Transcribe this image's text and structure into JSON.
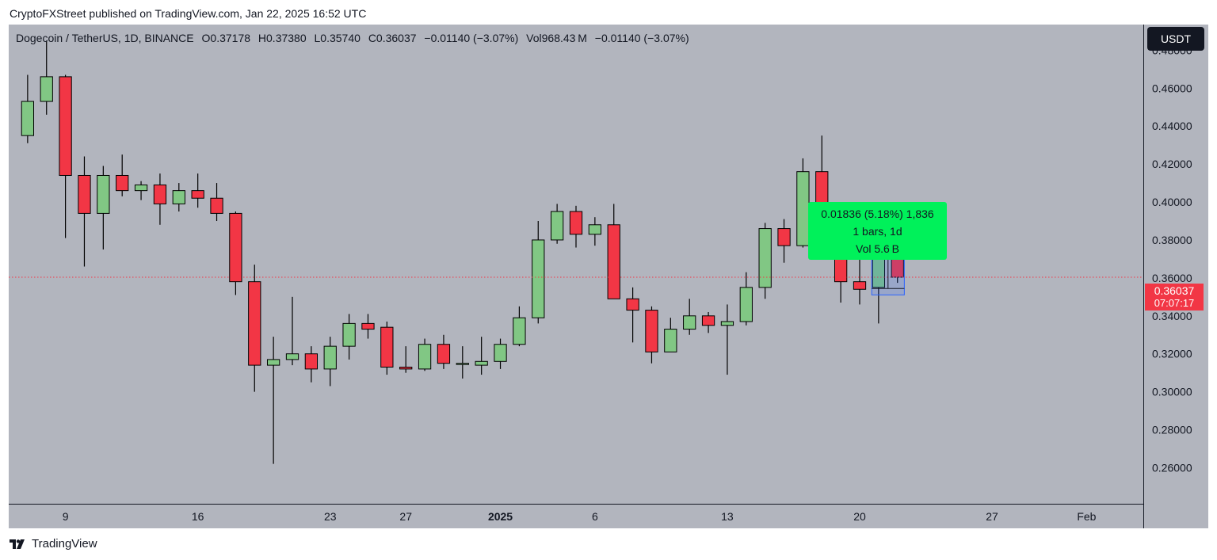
{
  "publisher": "CryptoFXStreet published on TradingView.com, Jan 22, 2025 16:52 UTC",
  "legend": {
    "symbol": "Dogecoin / TetherUS, 1D, BINANCE",
    "open": "O0.37178",
    "high": "H0.37380",
    "low": "L0.35740",
    "close": "C0.36037",
    "change": "−0.01140 (−3.07%)",
    "volume": "Vol968.43 M",
    "vol_change": "−0.01140 (−3.07%)"
  },
  "currency_button": "USDT",
  "price_tag": {
    "price": "0.36037",
    "countdown": "07:07:17"
  },
  "measure": {
    "line1": "0.01836 (5.18%) 1,836",
    "line2": "1 bars, 1d",
    "line3": "Vol 5.6 B"
  },
  "footer": "TradingView",
  "colors": {
    "background": "#b2b5be",
    "up": "#81c784",
    "down": "#f23645",
    "wick": "#000000",
    "price_line": "#f23645",
    "measure_box": "#00f15a"
  },
  "chart_data": {
    "type": "candlestick",
    "symbol": "Dogecoin / TetherUS",
    "interval": "1D",
    "exchange": "BINANCE",
    "ylim": [
      0.241,
      0.4935
    ],
    "yticks": [
      "0.48000",
      "0.46000",
      "0.44000",
      "0.42000",
      "0.40000",
      "0.38000",
      "0.36000",
      "0.34000",
      "0.32000",
      "0.30000",
      "0.28000",
      "0.26000"
    ],
    "xlim": [
      "2024-12-06",
      "2025-02-04"
    ],
    "xticks": [
      {
        "date": "2024-12-09",
        "label": "9"
      },
      {
        "date": "2024-12-16",
        "label": "16"
      },
      {
        "date": "2024-12-23",
        "label": "23"
      },
      {
        "date": "2024-12-27",
        "label": "27"
      },
      {
        "date": "2025-01-01",
        "label": "2025",
        "bold": true
      },
      {
        "date": "2025-01-06",
        "label": "6"
      },
      {
        "date": "2025-01-13",
        "label": "13"
      },
      {
        "date": "2025-01-20",
        "label": "20"
      },
      {
        "date": "2025-01-27",
        "label": "27"
      },
      {
        "date": "2025-02-01",
        "label": "Feb"
      }
    ],
    "last_price": 0.36037,
    "candles": [
      {
        "date": "2024-12-07",
        "o": 0.435,
        "h": 0.467,
        "l": 0.431,
        "c": 0.453
      },
      {
        "date": "2024-12-08",
        "o": 0.453,
        "h": 0.485,
        "l": 0.446,
        "c": 0.466
      },
      {
        "date": "2024-12-09",
        "o": 0.466,
        "h": 0.467,
        "l": 0.381,
        "c": 0.414
      },
      {
        "date": "2024-12-10",
        "o": 0.414,
        "h": 0.424,
        "l": 0.366,
        "c": 0.394
      },
      {
        "date": "2024-12-11",
        "o": 0.394,
        "h": 0.419,
        "l": 0.375,
        "c": 0.414
      },
      {
        "date": "2024-12-12",
        "o": 0.414,
        "h": 0.425,
        "l": 0.403,
        "c": 0.406
      },
      {
        "date": "2024-12-13",
        "o": 0.406,
        "h": 0.411,
        "l": 0.401,
        "c": 0.409
      },
      {
        "date": "2024-12-14",
        "o": 0.409,
        "h": 0.415,
        "l": 0.388,
        "c": 0.399
      },
      {
        "date": "2024-12-15",
        "o": 0.399,
        "h": 0.41,
        "l": 0.395,
        "c": 0.406
      },
      {
        "date": "2024-12-16",
        "o": 0.406,
        "h": 0.415,
        "l": 0.397,
        "c": 0.402
      },
      {
        "date": "2024-12-17",
        "o": 0.402,
        "h": 0.41,
        "l": 0.39,
        "c": 0.394
      },
      {
        "date": "2024-12-18",
        "o": 0.394,
        "h": 0.395,
        "l": 0.351,
        "c": 0.358
      },
      {
        "date": "2024-12-19",
        "o": 0.358,
        "h": 0.367,
        "l": 0.3,
        "c": 0.314
      },
      {
        "date": "2024-12-20",
        "o": 0.314,
        "h": 0.329,
        "l": 0.262,
        "c": 0.317
      },
      {
        "date": "2024-12-21",
        "o": 0.317,
        "h": 0.35,
        "l": 0.314,
        "c": 0.32
      },
      {
        "date": "2024-12-22",
        "o": 0.32,
        "h": 0.324,
        "l": 0.305,
        "c": 0.312
      },
      {
        "date": "2024-12-23",
        "o": 0.312,
        "h": 0.329,
        "l": 0.303,
        "c": 0.324
      },
      {
        "date": "2024-12-24",
        "o": 0.324,
        "h": 0.341,
        "l": 0.317,
        "c": 0.336
      },
      {
        "date": "2024-12-25",
        "o": 0.336,
        "h": 0.341,
        "l": 0.328,
        "c": 0.333
      },
      {
        "date": "2024-12-26",
        "o": 0.334,
        "h": 0.337,
        "l": 0.309,
        "c": 0.313
      },
      {
        "date": "2024-12-27",
        "o": 0.313,
        "h": 0.324,
        "l": 0.31,
        "c": 0.312
      },
      {
        "date": "2024-12-28",
        "o": 0.312,
        "h": 0.328,
        "l": 0.311,
        "c": 0.325
      },
      {
        "date": "2024-12-29",
        "o": 0.325,
        "h": 0.33,
        "l": 0.312,
        "c": 0.315
      },
      {
        "date": "2024-12-30",
        "o": 0.315,
        "h": 0.324,
        "l": 0.307,
        "c": 0.315
      },
      {
        "date": "2024-12-31",
        "o": 0.314,
        "h": 0.329,
        "l": 0.309,
        "c": 0.316
      },
      {
        "date": "2025-01-01",
        "o": 0.316,
        "h": 0.328,
        "l": 0.312,
        "c": 0.325
      },
      {
        "date": "2025-01-02",
        "o": 0.325,
        "h": 0.345,
        "l": 0.324,
        "c": 0.339
      },
      {
        "date": "2025-01-03",
        "o": 0.339,
        "h": 0.39,
        "l": 0.336,
        "c": 0.38
      },
      {
        "date": "2025-01-04",
        "o": 0.38,
        "h": 0.399,
        "l": 0.378,
        "c": 0.395
      },
      {
        "date": "2025-01-05",
        "o": 0.395,
        "h": 0.398,
        "l": 0.376,
        "c": 0.383
      },
      {
        "date": "2025-01-06",
        "o": 0.383,
        "h": 0.392,
        "l": 0.377,
        "c": 0.388
      },
      {
        "date": "2025-01-07",
        "o": 0.388,
        "h": 0.399,
        "l": 0.349,
        "c": 0.349
      },
      {
        "date": "2025-01-08",
        "o": 0.349,
        "h": 0.355,
        "l": 0.326,
        "c": 0.343
      },
      {
        "date": "2025-01-09",
        "o": 0.343,
        "h": 0.345,
        "l": 0.315,
        "c": 0.321
      },
      {
        "date": "2025-01-10",
        "o": 0.321,
        "h": 0.339,
        "l": 0.321,
        "c": 0.333
      },
      {
        "date": "2025-01-11",
        "o": 0.333,
        "h": 0.349,
        "l": 0.33,
        "c": 0.34
      },
      {
        "date": "2025-01-12",
        "o": 0.34,
        "h": 0.342,
        "l": 0.331,
        "c": 0.335
      },
      {
        "date": "2025-01-13",
        "o": 0.335,
        "h": 0.346,
        "l": 0.309,
        "c": 0.337
      },
      {
        "date": "2025-01-14",
        "o": 0.337,
        "h": 0.363,
        "l": 0.335,
        "c": 0.355
      },
      {
        "date": "2025-01-15",
        "o": 0.355,
        "h": 0.389,
        "l": 0.349,
        "c": 0.386
      },
      {
        "date": "2025-01-16",
        "o": 0.386,
        "h": 0.391,
        "l": 0.368,
        "c": 0.377
      },
      {
        "date": "2025-01-17",
        "o": 0.377,
        "h": 0.423,
        "l": 0.376,
        "c": 0.416
      },
      {
        "date": "2025-01-18",
        "o": 0.416,
        "h": 0.435,
        "l": 0.388,
        "c": 0.397
      },
      {
        "date": "2025-01-19",
        "o": 0.397,
        "h": 0.399,
        "l": 0.347,
        "c": 0.358
      },
      {
        "date": "2025-01-20",
        "o": 0.358,
        "h": 0.37,
        "l": 0.346,
        "c": 0.354
      },
      {
        "date": "2025-01-21",
        "o": 0.355,
        "h": 0.373,
        "l": 0.336,
        "c": 0.372
      },
      {
        "date": "2025-01-22",
        "o": 0.37178,
        "h": 0.3738,
        "l": 0.3574,
        "c": 0.36037
      }
    ],
    "measure_range": {
      "from_date": "2025-01-21",
      "to_date": "2025-01-22",
      "from_price": 0.3544,
      "to_price": 0.3728
    }
  }
}
